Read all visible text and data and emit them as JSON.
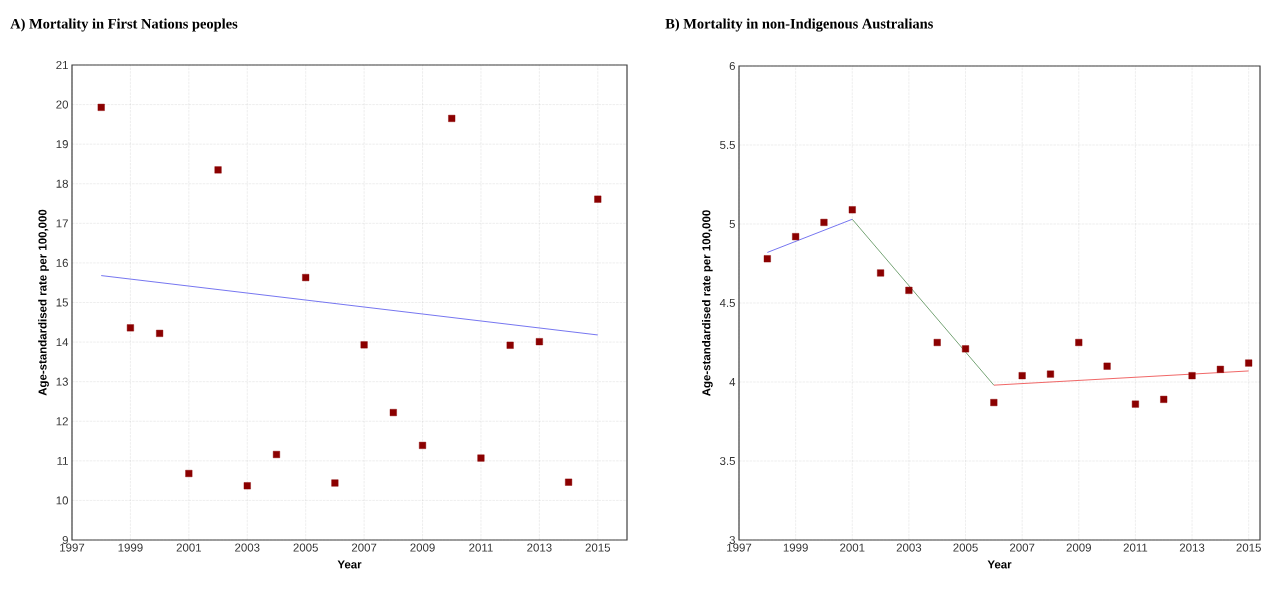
{
  "chart_data": [
    {
      "type": "scatter",
      "title": "A) Mortality  in First Nations peoples",
      "xlabel": "Year",
      "ylabel": "Age-standardised rate per 100,000",
      "xlim": [
        1997,
        2016
      ],
      "ylim": [
        9,
        21
      ],
      "xticks": [
        1997,
        1999,
        2001,
        2003,
        2005,
        2007,
        2009,
        2011,
        2013,
        2015
      ],
      "yticks": [
        9,
        10,
        11,
        12,
        13,
        14,
        15,
        16,
        17,
        18,
        19,
        20,
        21
      ],
      "grid": true,
      "series": [
        {
          "marker": "square",
          "color": "#8b0000",
          "x": [
            1998,
            1999,
            2000,
            2001,
            2002,
            2003,
            2004,
            2005,
            2006,
            2007,
            2008,
            2009,
            2010,
            2011,
            2012,
            2013,
            2014,
            2015
          ],
          "values": [
            19.93,
            14.36,
            14.22,
            10.68,
            18.35,
            10.37,
            11.16,
            15.63,
            10.44,
            13.93,
            12.22,
            11.39,
            19.65,
            11.07,
            13.92,
            14.01,
            10.46,
            17.61
          ]
        },
        {
          "type": "line",
          "color": "#6666ee",
          "x": [
            1998,
            2015
          ],
          "values": [
            15.68,
            14.18
          ]
        }
      ]
    },
    {
      "type": "scatter",
      "title": "B) Mortality  in non-Indigenous Australians",
      "xlabel": "Year",
      "ylabel": "Age-standardised rate per 100,000",
      "xlim": [
        1997,
        2015.4
      ],
      "ylim": [
        3,
        6
      ],
      "xticks": [
        1997,
        1999,
        2001,
        2003,
        2005,
        2007,
        2009,
        2011,
        2013,
        2015
      ],
      "yticks": [
        3,
        3.5,
        4,
        4.5,
        5,
        5.5,
        6
      ],
      "grid": true,
      "series": [
        {
          "marker": "square",
          "color": "#8b0000",
          "x": [
            1998,
            1999,
            2000,
            2001,
            2002,
            2003,
            2004,
            2005,
            2006,
            2007,
            2008,
            2009,
            2010,
            2011,
            2012,
            2013,
            2014,
            2015
          ],
          "values": [
            4.78,
            4.92,
            5.01,
            5.09,
            4.69,
            4.58,
            4.25,
            4.21,
            3.87,
            4.04,
            4.05,
            4.25,
            4.1,
            3.86,
            3.89,
            4.04,
            4.08,
            4.12
          ]
        },
        {
          "type": "line",
          "color": "#6666ee",
          "x": [
            1998,
            2001
          ],
          "values": [
            4.82,
            5.03
          ]
        },
        {
          "type": "line",
          "color": "#669966",
          "x": [
            2001,
            2006
          ],
          "values": [
            5.03,
            3.98
          ]
        },
        {
          "type": "line",
          "color": "#ee5555",
          "x": [
            2006,
            2015
          ],
          "values": [
            3.98,
            4.07
          ]
        }
      ]
    }
  ]
}
